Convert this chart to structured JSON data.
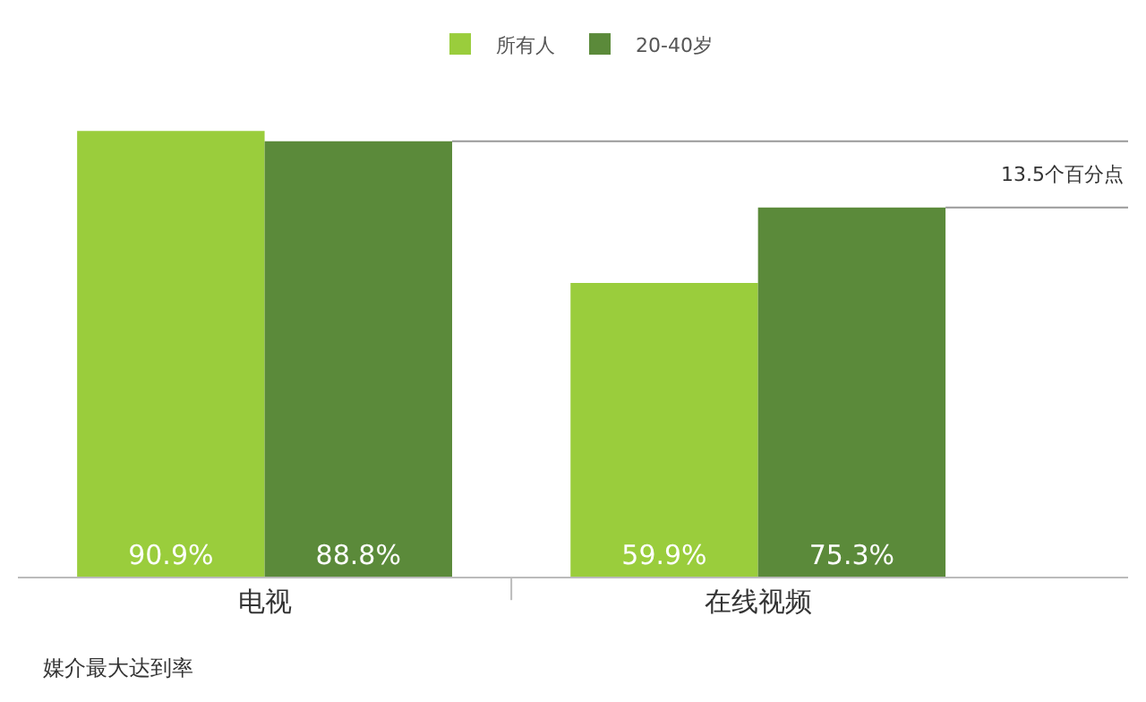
{
  "chart_data": {
    "type": "bar",
    "categories": [
      "电视",
      "在线视频"
    ],
    "series": [
      {
        "name": "所有人",
        "color": "#9acd3c",
        "values": [
          90.9,
          59.9
        ],
        "value_labels": [
          "90.9%",
          "59.9%"
        ]
      },
      {
        "name": "20-40岁",
        "color": "#5b8a3a",
        "values": [
          88.8,
          75.3
        ],
        "value_labels": [
          "88.8%",
          "75.3%"
        ]
      }
    ],
    "legend": "top",
    "grid": false,
    "annotations": [
      "13.5个百分点",
      "媒介最大达到率"
    ]
  }
}
